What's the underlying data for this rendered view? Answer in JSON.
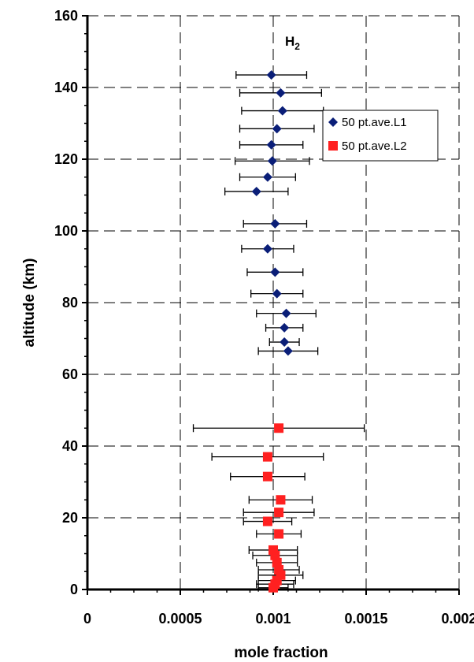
{
  "chart_data": {
    "type": "scatter",
    "title": "",
    "annotation": "H",
    "annotation_subscript": "2",
    "xlabel": "mole fraction",
    "ylabel": "altitude (km)",
    "xlim": [
      0,
      0.002
    ],
    "ylim": [
      0,
      160
    ],
    "xticks": [
      "0",
      "0.0005",
      "0.001",
      "0.0015",
      "0.002"
    ],
    "yticks": [
      "0",
      "20",
      "40",
      "60",
      "80",
      "100",
      "120",
      "140",
      "160"
    ],
    "xtick_values": [
      0,
      0.0005,
      0.001,
      0.0015,
      0.002
    ],
    "ytick_values": [
      0,
      20,
      40,
      60,
      80,
      100,
      120,
      140,
      160
    ],
    "grid": "dashed",
    "legend": "right",
    "series": [
      {
        "name": "50 pt.ave.L1",
        "marker": "diamond",
        "color": "#0a1e78",
        "points": [
          {
            "x": 0.00099,
            "y": 143.5,
            "xerr": 0.00019
          },
          {
            "x": 0.00104,
            "y": 138.5,
            "xerr": 0.00022
          },
          {
            "x": 0.00105,
            "y": 133.5,
            "xerr": 0.00022
          },
          {
            "x": 0.00102,
            "y": 128.5,
            "xerr": 0.0002
          },
          {
            "x": 0.00099,
            "y": 124.0,
            "xerr": 0.00017
          },
          {
            "x": 0.000995,
            "y": 119.5,
            "xerr": 0.0002
          },
          {
            "x": 0.00097,
            "y": 115.0,
            "xerr": 0.00015
          },
          {
            "x": 0.00091,
            "y": 111.0,
            "xerr": 0.00017
          },
          {
            "x": 0.00101,
            "y": 102.0,
            "xerr": 0.00017
          },
          {
            "x": 0.00097,
            "y": 95.0,
            "xerr": 0.00014
          },
          {
            "x": 0.00101,
            "y": 88.5,
            "xerr": 0.00015
          },
          {
            "x": 0.00102,
            "y": 82.5,
            "xerr": 0.00014
          },
          {
            "x": 0.00107,
            "y": 77.0,
            "xerr": 0.00016
          },
          {
            "x": 0.00106,
            "y": 73.0,
            "xerr": 0.0001
          },
          {
            "x": 0.00106,
            "y": 69.0,
            "xerr": 8e-05
          },
          {
            "x": 0.00108,
            "y": 66.5,
            "xerr": 0.00016
          }
        ]
      },
      {
        "name": "50 pt.ave.L2",
        "marker": "square",
        "color": "#ff2020",
        "points": [
          {
            "x": 0.00103,
            "y": 45.0,
            "xerr": 0.00046
          },
          {
            "x": 0.00097,
            "y": 37.0,
            "xerr": 0.0003
          },
          {
            "x": 0.00097,
            "y": 31.5,
            "xerr": 0.0002
          },
          {
            "x": 0.00104,
            "y": 25.0,
            "xerr": 0.00017
          },
          {
            "x": 0.00103,
            "y": 21.5,
            "xerr": 0.00019
          },
          {
            "x": 0.00097,
            "y": 19.0,
            "xerr": 0.00013
          },
          {
            "x": 0.00103,
            "y": 15.5,
            "xerr": 0.00012
          },
          {
            "x": 0.001,
            "y": 11.0,
            "xerr": 0.00013
          },
          {
            "x": 0.00101,
            "y": 9.5,
            "xerr": 0.00012
          },
          {
            "x": 0.00102,
            "y": 7.5,
            "xerr": 0.00011
          },
          {
            "x": 0.00103,
            "y": 5.5,
            "xerr": 0.00011
          },
          {
            "x": 0.00104,
            "y": 4.0,
            "xerr": 0.00012
          },
          {
            "x": 0.00102,
            "y": 2.5,
            "xerr": 0.0001
          },
          {
            "x": 0.00101,
            "y": 1.5,
            "xerr": 0.0001
          },
          {
            "x": 0.001,
            "y": 0.5,
            "xerr": 8e-05
          }
        ]
      }
    ]
  }
}
